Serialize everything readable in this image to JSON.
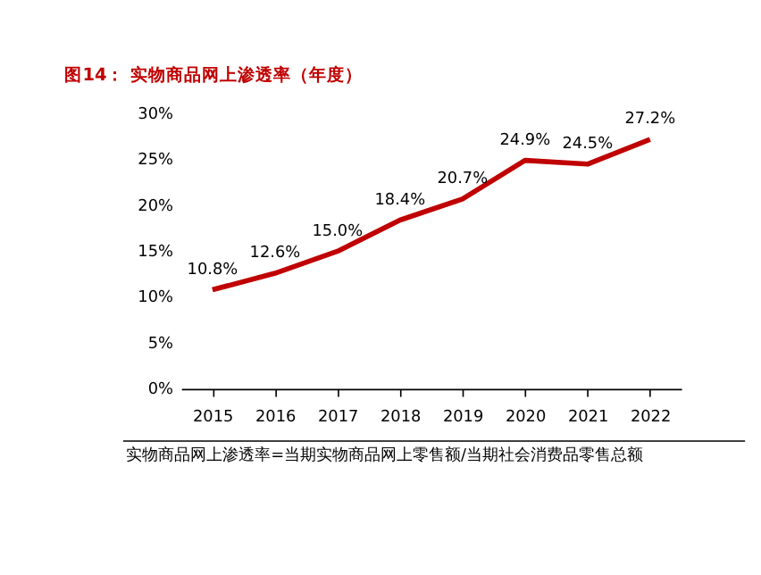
{
  "chart_data": {
    "type": "line",
    "title": "图14：  实物商品网上渗透率（年度）",
    "categories": [
      "2015",
      "2016",
      "2017",
      "2018",
      "2019",
      "2020",
      "2021",
      "2022"
    ],
    "values": [
      10.8,
      12.6,
      15.0,
      18.4,
      20.7,
      24.9,
      24.5,
      27.2
    ],
    "value_labels": [
      "10.8%",
      "12.6%",
      "15.0%",
      "18.4%",
      "20.7%",
      "24.9%",
      "24.5%",
      "27.2%"
    ],
    "color": "#c00000",
    "ylim": [
      0,
      30
    ],
    "yticks": [
      {
        "value": 0,
        "label": "0%"
      },
      {
        "value": 5,
        "label": "5%"
      },
      {
        "value": 10,
        "label": "10%"
      },
      {
        "value": 15,
        "label": "15%"
      },
      {
        "value": 20,
        "label": "20%"
      },
      {
        "value": 25,
        "label": "25%"
      },
      {
        "value": 30,
        "label": "30%"
      }
    ],
    "grid": false,
    "marker": "none",
    "line_style": "solid",
    "annotations": [
      "实物商品网上渗透率=当期实物商品网上零售额/当期社会消费品零售总额"
    ]
  }
}
